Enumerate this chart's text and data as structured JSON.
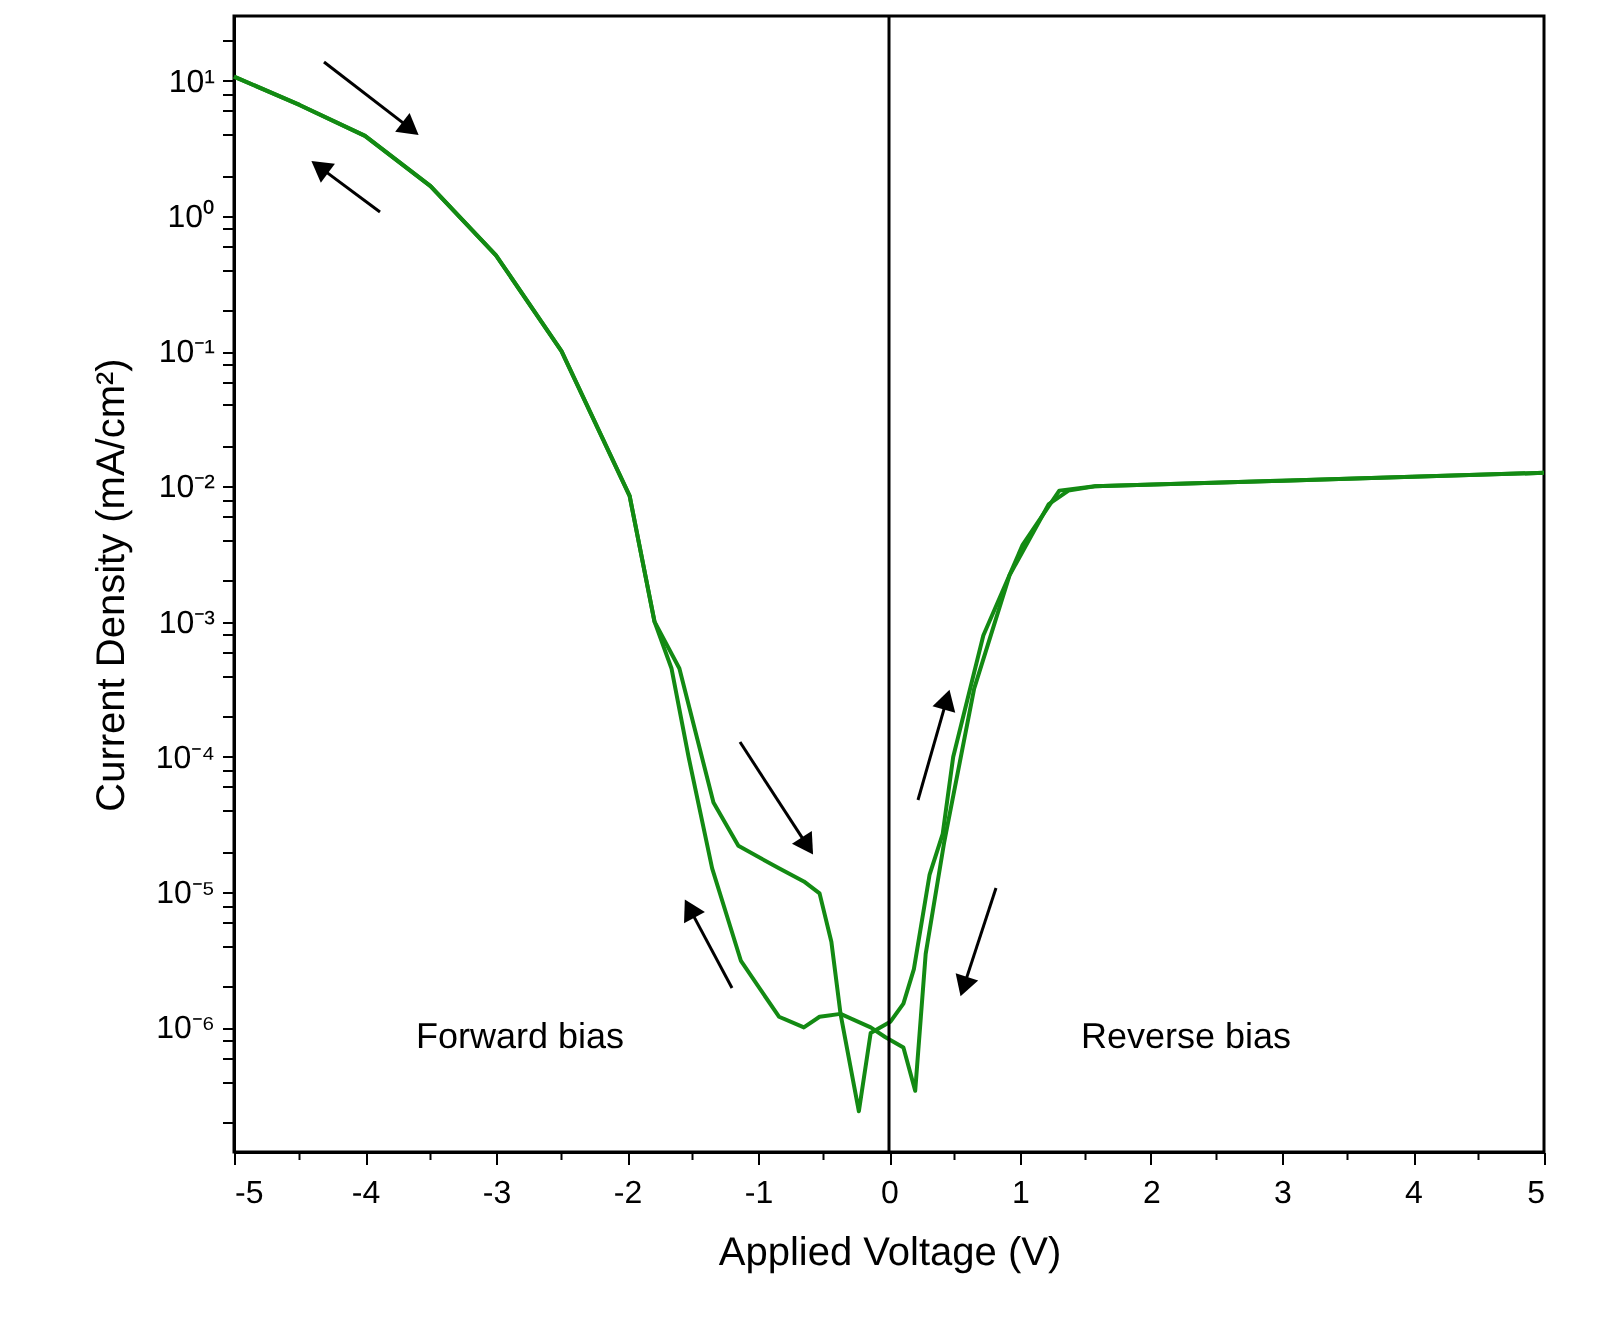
{
  "chart_data": {
    "type": "line",
    "xlabel": "Applied Voltage (V)",
    "ylabel": "Current Density (mA/cm²)",
    "annotations": [
      "Forward bias",
      "Reverse bias"
    ],
    "log": "y",
    "grid": false,
    "marker": "none",
    "line_style": "solid",
    "xlim": [
      -5,
      5
    ],
    "ylim": [
      1.2e-07,
      30
    ],
    "xticks": [
      -5,
      {
        "value": -4.5,
        "label": null
      },
      -4,
      {
        "value": -3.5,
        "label": null
      },
      -3,
      {
        "value": -2.5,
        "label": null
      },
      -2,
      {
        "value": -1.5,
        "label": null
      },
      -1,
      {
        "value": -0.5,
        "label": null
      },
      0,
      {
        "value": 0.5,
        "label": null
      },
      1,
      {
        "value": 1.5,
        "label": null
      },
      2,
      {
        "value": 2.5,
        "label": null
      },
      3,
      {
        "value": 3.5,
        "label": null
      },
      4,
      {
        "value": 4.5,
        "label": null
      },
      5
    ],
    "yticks": [
      {
        "value": 1e-06,
        "label": "10⁻⁶"
      },
      {
        "value": 1e-05,
        "label": "10⁻⁵"
      },
      {
        "value": 0.0001,
        "label": "10⁻⁴"
      },
      {
        "value": 0.001,
        "label": "10⁻³"
      },
      {
        "value": 0.01,
        "label": "10⁻²"
      },
      {
        "value": 0.1,
        "label": "10⁻¹"
      },
      {
        "value": 1,
        "label": "10⁰"
      },
      {
        "value": 10,
        "label": "10¹"
      },
      {
        "value": 2e-07,
        "label": null
      },
      {
        "value": 4e-07,
        "label": null
      },
      {
        "value": 6e-07,
        "label": null
      },
      {
        "value": 8e-07,
        "label": null
      },
      {
        "value": 2e-06,
        "label": null
      },
      {
        "value": 4e-06,
        "label": null
      },
      {
        "value": 6e-06,
        "label": null
      },
      {
        "value": 8e-06,
        "label": null
      },
      {
        "value": 2e-05,
        "label": null
      },
      {
        "value": 4e-05,
        "label": null
      },
      {
        "value": 6e-05,
        "label": null
      },
      {
        "value": 8e-05,
        "label": null
      },
      {
        "value": 0.0002,
        "label": null
      },
      {
        "value": 0.0004,
        "label": null
      },
      {
        "value": 0.0006,
        "label": null
      },
      {
        "value": 0.0008,
        "label": null
      },
      {
        "value": 0.002,
        "label": null
      },
      {
        "value": 0.004,
        "label": null
      },
      {
        "value": 0.006,
        "label": null
      },
      {
        "value": 0.008,
        "label": null
      },
      {
        "value": 0.02,
        "label": null
      },
      {
        "value": 0.04,
        "label": null
      },
      {
        "value": 0.06,
        "label": null
      },
      {
        "value": 0.08,
        "label": null
      },
      {
        "value": 0.2,
        "label": null
      },
      {
        "value": 0.4,
        "label": null
      },
      {
        "value": 0.6,
        "label": null
      },
      {
        "value": 0.8,
        "label": null
      },
      {
        "value": 2,
        "label": null
      },
      {
        "value": 4,
        "label": null
      },
      {
        "value": 6,
        "label": null
      },
      {
        "value": 8,
        "label": null
      },
      {
        "value": 20,
        "label": null
      }
    ],
    "ref_lines": [
      {
        "axis": "x",
        "value": 0,
        "color": "#000000"
      }
    ],
    "series": [
      {
        "color": "#138a13",
        "x": [
          -5,
          -4.5,
          -4,
          -3.5,
          -3,
          -2.5,
          -1.98,
          -1.79,
          -1.6,
          -1.34,
          -1.15,
          -0.84,
          -0.65,
          -0.53,
          -0.44,
          -0.37,
          -0.23,
          -0.14,
          0.01,
          0.11,
          0.19,
          0.31,
          0.41,
          0.49,
          0.72,
          1.02,
          1.3,
          1.57,
          3,
          5
        ],
        "values": [
          10.7,
          6.6,
          3.9,
          1.66,
          0.51,
          0.1,
          0.0085,
          0.001,
          0.00045,
          4.6e-05,
          2.2e-05,
          1.5e-05,
          1.2e-05,
          9.8e-06,
          4.3e-06,
          1.26e-06,
          2.4e-07,
          9.1e-07,
          1.1e-06,
          1.5e-06,
          2.7e-06,
          1.35e-05,
          2.7e-05,
          0.0001,
          0.00079,
          0.0037,
          0.0093,
          0.01,
          0.011,
          0.0126
        ]
      },
      {
        "color": "#138a13",
        "x": [
          -5,
          -4.5,
          -4,
          -3.5,
          -3,
          -2.5,
          -1.98,
          -1.79,
          -1.66,
          -1.53,
          -1.35,
          -1.13,
          -0.84,
          -0.65,
          -0.53,
          -0.37,
          -0.14,
          -0.03,
          0.11,
          0.2,
          0.28,
          0.42,
          0.65,
          0.92,
          1.22,
          1.37,
          1.57,
          3,
          5
        ],
        "values": [
          10.7,
          6.6,
          3.9,
          1.66,
          0.51,
          0.1,
          0.0085,
          0.001,
          0.00045,
          0.0001,
          1.5e-05,
          3.1e-06,
          1.2e-06,
          1e-06,
          1.2e-06,
          1.26e-06,
          1e-06,
          8.5e-07,
          7.1e-07,
          3.4e-07,
          3.5e-06,
          2.3e-05,
          0.00032,
          0.0022,
          0.0074,
          0.0093,
          0.01,
          0.011,
          0.0126
        ]
      }
    ]
  }
}
